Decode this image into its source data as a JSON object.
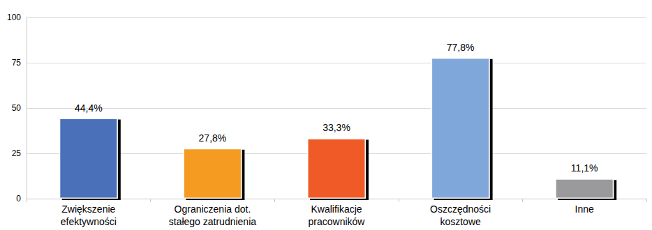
{
  "chart_data": {
    "type": "bar",
    "categories": [
      "Zwiększenie\nefektywności",
      "Ograniczenia dot.\nstałego zatrudnienia",
      "Kwalifikacje\npracowników",
      "Oszczędności\nkosztowe",
      "Inne"
    ],
    "values": [
      44.4,
      27.8,
      33.3,
      77.8,
      11.1
    ],
    "value_labels": [
      "44,4%",
      "27,8%",
      "33,3%",
      "77,8%",
      "11,1%"
    ],
    "colors": [
      "#4a70b9",
      "#f59b23",
      "#f05a28",
      "#80a7d9",
      "#9a9a9c"
    ],
    "data_labels": true,
    "ylim": [
      0,
      100
    ],
    "yticks": [
      0,
      25,
      50,
      75,
      100
    ],
    "grid": true
  }
}
